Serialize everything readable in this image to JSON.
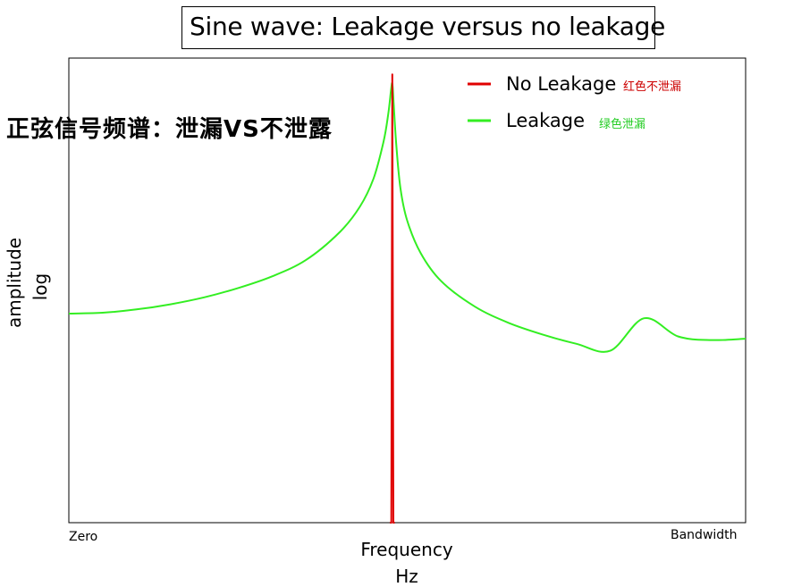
{
  "title": "Sine wave: Leakage versus no leakage",
  "annotation_cn": "正弦信号频谱：泄漏VS不泄露",
  "legend": [
    {
      "label": "No Leakage",
      "note": "红色不泄漏",
      "color": "#e00000",
      "note_color": "#cc0000"
    },
    {
      "label": "Leakage",
      "note": "绿色泄漏",
      "color": "#33ee22",
      "note_color": "#22cc22"
    }
  ],
  "axes": {
    "xlabel_line1": "Frequency",
    "xlabel_line2": "Hz",
    "ylabel_line1": "amplitude",
    "ylabel_line2": "log",
    "x_tick_left": "Zero",
    "x_tick_right": "Bandwidth"
  },
  "chart_data": {
    "type": "line",
    "title": "Sine wave: Leakage versus no leakage",
    "xlabel": "Frequency Hz",
    "ylabel": "amplitude log",
    "x_ticks": [
      "Zero",
      "Bandwidth"
    ],
    "y_scale": "log",
    "grid": false,
    "legend_placement": "top-right",
    "xlim": [
      0,
      1
    ],
    "ylim": [
      0,
      1
    ],
    "series": [
      {
        "name": "No Leakage",
        "color": "#e00000",
        "x": [
          0.4745,
          0.4765,
          0.478,
          0.4795,
          0.4815
        ],
        "y": [
          0.0,
          0.0,
          0.965,
          0.0,
          0.0
        ]
      },
      {
        "name": "Leakage",
        "color": "#33ee22",
        "x": [
          0.0,
          0.05,
          0.1,
          0.15,
          0.2,
          0.25,
          0.3,
          0.35,
          0.4,
          0.43,
          0.45,
          0.465,
          0.472,
          0.476,
          0.478,
          0.48,
          0.484,
          0.49,
          0.5,
          0.52,
          0.55,
          0.6,
          0.65,
          0.7,
          0.75,
          0.8,
          0.85,
          0.9,
          0.95,
          1.0
        ],
        "y": [
          0.45,
          0.452,
          0.459,
          0.47,
          0.485,
          0.505,
          0.53,
          0.565,
          0.625,
          0.68,
          0.74,
          0.82,
          0.88,
          0.93,
          0.945,
          0.9,
          0.81,
          0.72,
          0.65,
          0.58,
          0.52,
          0.465,
          0.43,
          0.405,
          0.385,
          0.37,
          0.44,
          0.401,
          0.393,
          0.396
        ]
      }
    ]
  }
}
